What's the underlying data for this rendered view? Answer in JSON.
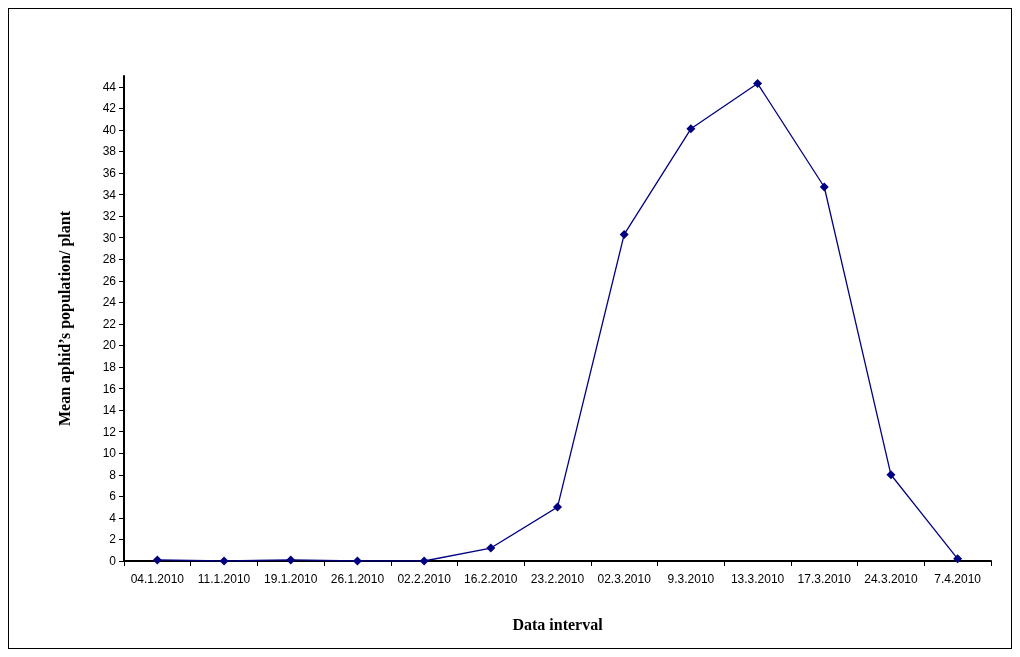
{
  "chart_data": {
    "type": "line",
    "xlabel": "Data interval",
    "ylabel": "Mean aphid’s population/ plant",
    "categories": [
      "04.1.2010",
      "11.1.2010",
      "19.1.2010",
      "26.1.2010",
      "02.2.2010",
      "16.2.2010",
      "23.2.2010",
      "02.3.2010",
      "9.3.2010",
      "13.3.2010",
      "17.3.2010",
      "24.3.2010",
      "7.4.2010"
    ],
    "series": [
      {
        "color": "#000080",
        "values": [
          0.1,
          0,
          0.1,
          0,
          0,
          1.2,
          5,
          30.3,
          40.1,
          44.3,
          34.7,
          8,
          0.2
        ]
      }
    ],
    "ylim": [
      0,
      45
    ],
    "yticks": [
      0,
      2,
      4,
      6,
      8,
      10,
      12,
      14,
      16,
      18,
      20,
      22,
      24,
      26,
      28,
      30,
      32,
      34,
      36,
      38,
      40,
      42,
      44
    ],
    "marker": "diamond",
    "line_style": "solid"
  }
}
